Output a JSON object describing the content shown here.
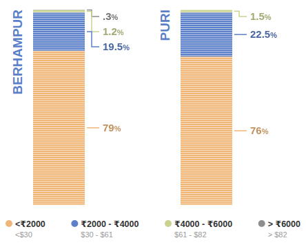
{
  "chart_data": {
    "type": "bar",
    "stacked": true,
    "data_labels": true,
    "tick_labels": false,
    "legend": "bottom",
    "categories": [
      "BERHAMPUR",
      "PURI"
    ],
    "ylim": [
      0,
      100
    ],
    "series": [
      {
        "name": "<₹2000",
        "usd_label": "<$30",
        "color": "#f0b677",
        "values": [
          79,
          76
        ],
        "value_labels": [
          "79%",
          "76%"
        ]
      },
      {
        "name": "₹2000 - ₹4000",
        "usd_label": "$30 - $61",
        "color": "#5b80c9",
        "values": [
          19.5,
          22.5
        ],
        "value_labels": [
          "19.5%",
          "22.5%"
        ]
      },
      {
        "name": "₹4000 - ₹6000",
        "usd_label": "$61 - $82",
        "color": "#c9d38e",
        "values": [
          1.2,
          1.5
        ],
        "value_labels": [
          "1.2%",
          "1.5%"
        ]
      },
      {
        "name": "> ₹6000",
        "usd_label": "> $82",
        "color": "#8e8e8e",
        "values": [
          0.3,
          null
        ],
        "value_labels": [
          ".3%",
          null
        ]
      }
    ]
  }
}
